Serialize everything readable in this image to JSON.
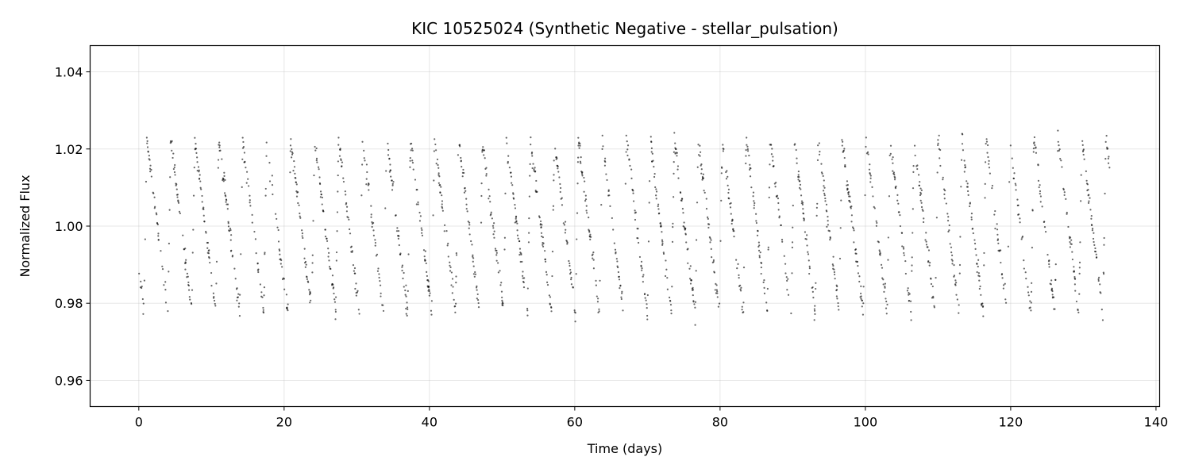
{
  "chart_data": {
    "type": "scatter",
    "title": "KIC 10525024 (Synthetic Negative - stellar_pulsation)",
    "xlabel": "Time (days)",
    "ylabel": "Normalized Flux",
    "xlim": [
      -6.7,
      140.5
    ],
    "ylim": [
      0.9532,
      1.0468
    ],
    "xticks": [
      0,
      20,
      40,
      60,
      80,
      100,
      120,
      140
    ],
    "xtick_labels": [
      "0",
      "20",
      "40",
      "60",
      "80",
      "100",
      "120",
      "140"
    ],
    "yticks": [
      0.96,
      0.98,
      1.0,
      1.02,
      1.04
    ],
    "ytick_labels": [
      "0.96",
      "0.98",
      "1.00",
      "1.02",
      "1.04"
    ],
    "grid": true,
    "legend": "none",
    "marker_color": "#000000",
    "series": [
      {
        "time_start": 0.0,
        "time_end": 133.7,
        "time_step": 0.0204,
        "baseline": 1.0,
        "pulsation_period": 3.3,
        "pulsation_amplitude": 0.0225,
        "pulsation_shape": "asymmetric sawtooth (fast rise, slow decline)",
        "noise_sigma": 0.0012,
        "flux_min": 0.9732,
        "flux_max": 1.0268
      }
    ]
  }
}
